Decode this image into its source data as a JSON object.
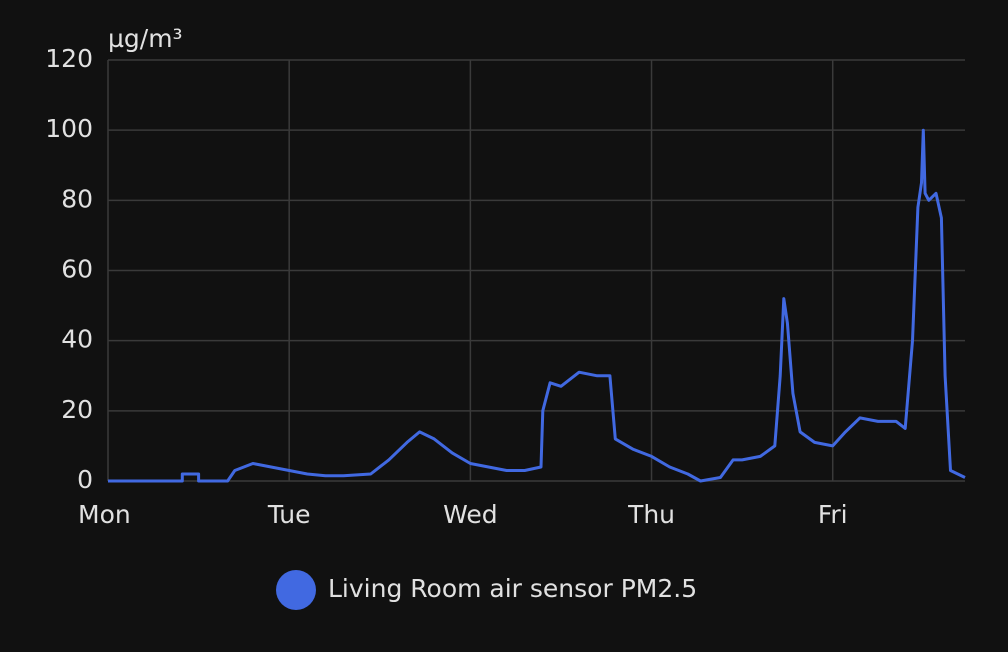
{
  "chart_data": {
    "type": "line",
    "y_label": "µg/m³",
    "x": [
      0,
      0.41,
      0.41,
      0.5,
      0.5,
      0.66,
      0.7,
      0.8,
      0.9,
      1.0,
      1.1,
      1.2,
      1.3,
      1.45,
      1.55,
      1.65,
      1.72,
      1.8,
      1.9,
      2.0,
      2.1,
      2.2,
      2.3,
      2.39,
      2.4,
      2.44,
      2.5,
      2.6,
      2.7,
      2.77,
      2.8,
      2.9,
      3.0,
      3.1,
      3.2,
      3.27,
      3.38,
      3.45,
      3.5,
      3.6,
      3.68,
      3.71,
      3.73,
      3.75,
      3.78,
      3.82,
      3.9,
      4.0,
      4.07,
      4.15,
      4.25,
      4.35,
      4.4,
      4.44,
      4.47,
      4.49,
      4.5,
      4.51,
      4.53,
      4.57,
      4.6,
      4.62,
      4.65,
      4.73
    ],
    "series": [
      {
        "name": "Living Room air sensor PM2.5",
        "color": "#4169e1",
        "values": [
          0,
          0,
          2,
          2,
          0,
          0,
          3,
          5,
          4,
          3,
          2,
          1.5,
          1.5,
          2,
          6,
          11,
          14,
          12,
          8,
          5,
          4,
          3,
          3,
          4,
          20,
          28,
          27,
          31,
          30,
          30,
          12,
          9,
          7,
          4,
          2,
          0,
          1,
          6,
          6,
          7,
          10,
          30,
          52,
          45,
          25,
          14,
          11,
          10,
          14,
          18,
          17,
          17,
          15,
          40,
          78,
          85,
          100,
          82,
          80,
          82,
          75,
          30,
          3,
          1
        ]
      }
    ],
    "xlim": [
      0,
      4.73
    ],
    "xticks": [
      {
        "value": 0,
        "label": "Mon"
      },
      {
        "value": 1,
        "label": "Tue"
      },
      {
        "value": 2,
        "label": "Wed"
      },
      {
        "value": 3,
        "label": "Thu"
      },
      {
        "value": 4,
        "label": "Fri"
      }
    ],
    "ylim": [
      0,
      120
    ],
    "yticks": [
      0,
      20,
      40,
      60,
      80,
      100,
      120
    ],
    "grid": true
  }
}
